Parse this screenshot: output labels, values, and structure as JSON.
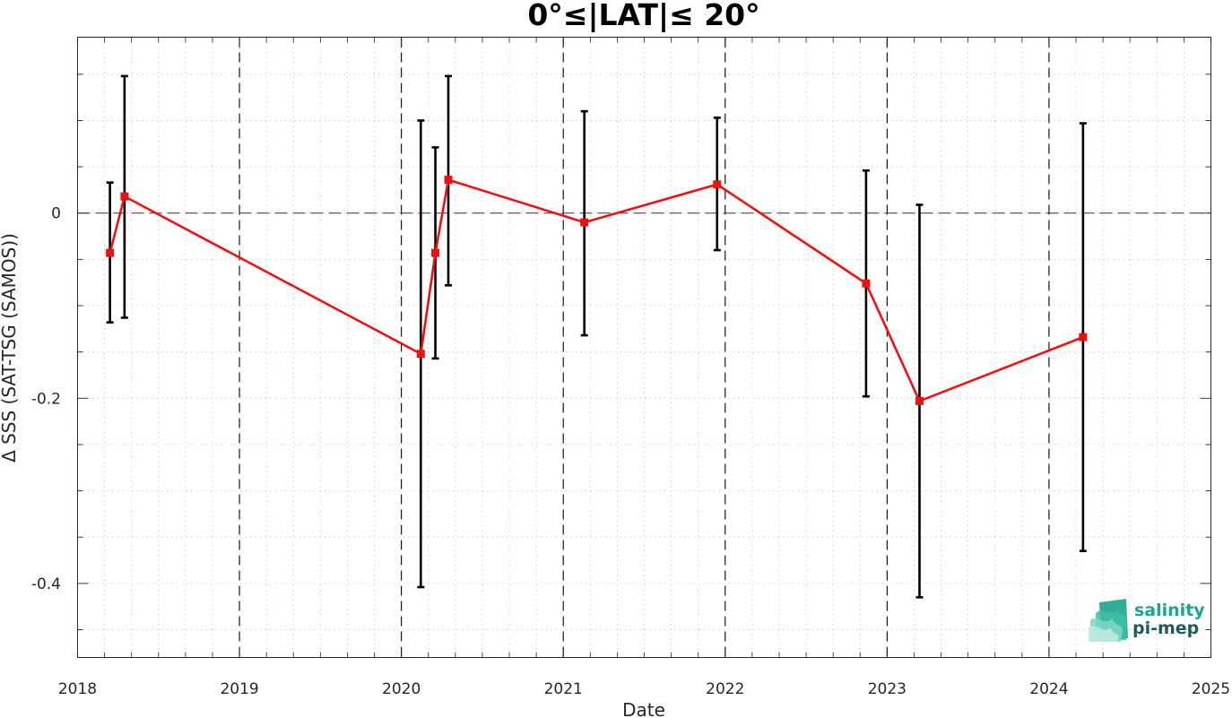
{
  "chart_data": {
    "type": "line",
    "title": "0°≤|LAT|≤ 20°",
    "xlabel": "Date",
    "ylabel": "Δ SSS (SAT-TSG (SAMOS))",
    "xlim": [
      2018,
      2025
    ],
    "ylim": [
      -0.48,
      0.19
    ],
    "xticks": [
      {
        "value": 2018,
        "label": "2018"
      },
      {
        "value": 2019,
        "label": "2019"
      },
      {
        "value": 2020,
        "label": "2020"
      },
      {
        "value": 2021,
        "label": "2021"
      },
      {
        "value": 2022,
        "label": "2022"
      },
      {
        "value": 2023,
        "label": "2023"
      },
      {
        "value": 2024,
        "label": "2024"
      },
      {
        "value": 2025,
        "label": "2025"
      }
    ],
    "yticks": [
      {
        "value": 0,
        "label": "0"
      },
      {
        "value": -0.2,
        "label": "-0.2"
      },
      {
        "value": -0.4,
        "label": "-0.4"
      }
    ],
    "grid": "minor-dotted",
    "year_separators": [
      2019,
      2020,
      2021,
      2022,
      2023,
      2024
    ],
    "zero_line": 0,
    "series": [
      {
        "color": "#ee1111",
        "marker": "square",
        "x": [
          2018.2,
          2018.29,
          2020.12,
          2020.21,
          2020.29,
          2021.13,
          2021.95,
          2022.87,
          2023.2,
          2024.21
        ],
        "y": [
          -0.043,
          0.018,
          -0.152,
          -0.043,
          0.036,
          -0.01,
          0.031,
          -0.076,
          -0.203,
          -0.134
        ],
        "err_low": [
          -0.118,
          -0.113,
          -0.404,
          -0.157,
          -0.078,
          -0.132,
          -0.04,
          -0.198,
          -0.415,
          -0.365
        ],
        "err_high": [
          0.033,
          0.148,
          0.1,
          0.071,
          0.148,
          0.11,
          0.103,
          0.046,
          0.009,
          0.097
        ]
      }
    ]
  },
  "logo": {
    "line1": "salinity",
    "line2": "pi-mep",
    "color1": "#1aa58f",
    "color2": "#1f5c5a"
  }
}
